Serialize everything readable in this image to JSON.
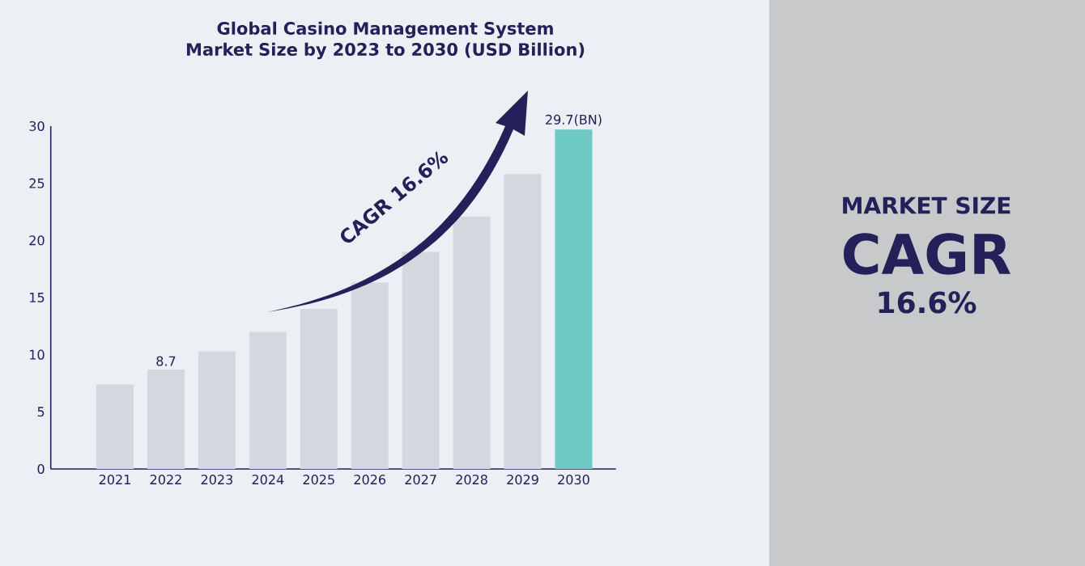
{
  "chart_data": {
    "type": "bar",
    "title": "Global Casino Management System Market Size by 2023 to 2030 (USD Billion)",
    "categories": [
      "2021",
      "2022",
      "2023",
      "2024",
      "2025",
      "2026",
      "2027",
      "2028",
      "2029",
      "2030"
    ],
    "values": [
      7.4,
      8.7,
      10.3,
      12.0,
      14.0,
      16.3,
      19.0,
      22.1,
      25.8,
      29.7
    ],
    "colors": [
      "#d2d8dd",
      "#d2d8dd",
      "#d2d8dd",
      "#d2d8dd",
      "#d2d8dd",
      "#d2d8dd",
      "#d2d8dd",
      "#d2d8dd",
      "#d2d8dd",
      "#6ecac3"
    ],
    "value_labels": [
      null,
      "8.7",
      null,
      null,
      null,
      null,
      null,
      null,
      null,
      "29.7(BN)"
    ],
    "ylim": [
      0,
      30
    ],
    "yticks": [
      0,
      5,
      10,
      15,
      20,
      25,
      30
    ],
    "annotations": [
      "CAGR 16.6%",
      "MARKET SIZE",
      "CAGR",
      "16.6%"
    ]
  }
}
